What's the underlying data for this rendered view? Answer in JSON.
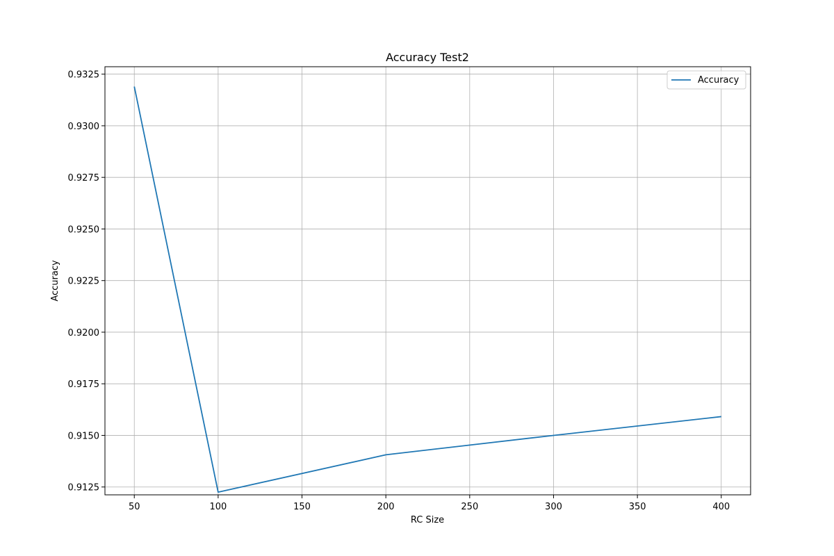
{
  "chart_data": {
    "type": "line",
    "title": "Accuracy Test2",
    "xlabel": "RC Size",
    "ylabel": "Accuracy",
    "x": [
      50,
      100,
      200,
      300,
      400
    ],
    "series": [
      {
        "name": "Accuracy",
        "color": "#1f77b4",
        "values": [
          0.9319,
          0.91225,
          0.91406,
          0.915,
          0.91591
        ]
      }
    ],
    "xlim": [
      32.5,
      417.5
    ],
    "ylim": [
      0.91212,
      0.93286
    ],
    "xticks": [
      50,
      100,
      150,
      200,
      250,
      300,
      350,
      400
    ],
    "xtick_labels": [
      "50",
      "100",
      "150",
      "200",
      "250",
      "300",
      "350",
      "400"
    ],
    "yticks": [
      0.9125,
      0.915,
      0.9175,
      0.92,
      0.9225,
      0.925,
      0.9275,
      0.93,
      0.9325
    ],
    "ytick_labels": [
      "0.9125",
      "0.9150",
      "0.9175",
      "0.9200",
      "0.9225",
      "0.9250",
      "0.9275",
      "0.9300",
      "0.9325"
    ],
    "grid": true,
    "legend_position": "top-right"
  }
}
